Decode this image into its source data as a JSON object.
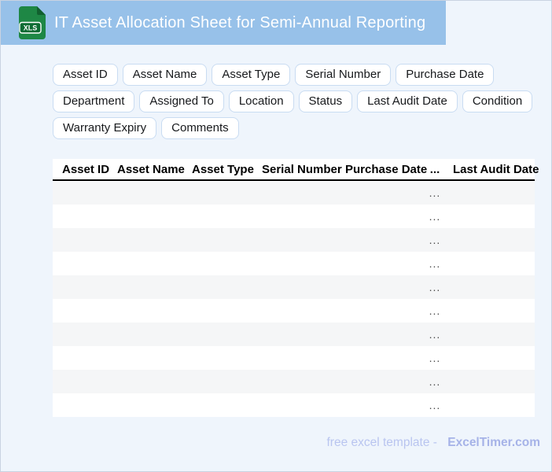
{
  "header": {
    "title": "IT Asset Allocation Sheet for Semi-Annual Reporting",
    "icon_label": "XLS",
    "band_color": "#97c1e9",
    "icon_green": "#1e8745",
    "icon_fold_green": "#11602f",
    "icon_badge_green": "#0d6b33"
  },
  "field_chips": [
    "Asset ID",
    "Asset Name",
    "Asset Type",
    "Serial Number",
    "Purchase Date",
    "Department",
    "Assigned To",
    "Location",
    "Status",
    "Last Audit Date",
    "Condition",
    "Warranty Expiry",
    "Comments"
  ],
  "table": {
    "columns": [
      "Asset ID",
      "Asset Name",
      "Asset Type",
      "Serial Number",
      "Purchase Date",
      "...",
      "Last Audit Date"
    ],
    "rows": [
      [
        "",
        "",
        "",
        "",
        "",
        "...",
        ""
      ],
      [
        "",
        "",
        "",
        "",
        "",
        "...",
        ""
      ],
      [
        "",
        "",
        "",
        "",
        "",
        "...",
        ""
      ],
      [
        "",
        "",
        "",
        "",
        "",
        "...",
        ""
      ],
      [
        "",
        "",
        "",
        "",
        "",
        "...",
        ""
      ],
      [
        "",
        "",
        "",
        "",
        "",
        "...",
        ""
      ],
      [
        "",
        "",
        "",
        "",
        "",
        "...",
        ""
      ],
      [
        "",
        "",
        "",
        "",
        "",
        "...",
        ""
      ],
      [
        "",
        "",
        "",
        "",
        "",
        "...",
        ""
      ],
      [
        "",
        "",
        "",
        "",
        "",
        "...",
        ""
      ]
    ],
    "stripe_color": "#f5f6f7"
  },
  "footer": {
    "prefix": "free excel template -",
    "brand": "ExcelTimer.com"
  }
}
